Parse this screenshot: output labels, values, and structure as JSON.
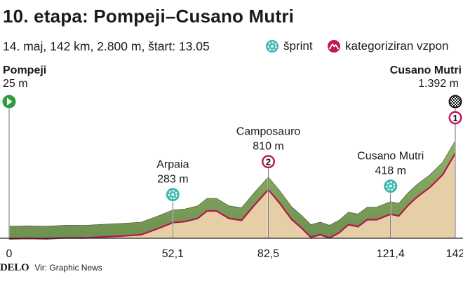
{
  "header": {
    "title": "10. etapa: Pompeji–Cusano Mutri",
    "subtitle": "14. maj, 142 km, 2.800 m, štart: 13.05"
  },
  "legend": {
    "sprint_label": "šprint",
    "climb_label": "kategoriziran vzpon",
    "sprint_icon": "sprint-icon",
    "climb_icon": "mountain-climb-icon"
  },
  "footer": {
    "brand": "DELO",
    "source": "Vir: Graphic News"
  },
  "colors": {
    "profile_fill": "#e6cfa6",
    "ridge": "#7da15a",
    "ridge_dark": "#454a30",
    "line": "#b2164a",
    "sprint": "#3fb8ad",
    "climb": "#c2185b",
    "start": "#2e9e3e"
  },
  "chart_data": {
    "type": "area",
    "xlabel": "",
    "ylabel": "",
    "x_unit": "km",
    "y_unit": "m",
    "xlim": [
      0,
      142
    ],
    "ylim": [
      0,
      1400
    ],
    "x_ticks": [
      "0",
      "52,1",
      "82,5",
      "121,4",
      "142"
    ],
    "x_tick_values": [
      0,
      52.1,
      82.5,
      121.4,
      142
    ],
    "start": {
      "name": "Pompeji",
      "elevation_label": "25 m",
      "km": 0
    },
    "finish": {
      "name": "Cusano Mutri",
      "elevation_label": "1.392 m",
      "km": 142,
      "category": "1"
    },
    "markers": [
      {
        "type": "sprint",
        "name": "Arpaia",
        "elevation_label": "283 m",
        "km": 52.1,
        "elevation": 283
      },
      {
        "type": "climb",
        "name": "Camposauro",
        "elevation_label": "810 m",
        "km": 82.5,
        "elevation": 810,
        "category": "2"
      },
      {
        "type": "sprint",
        "name": "Cusano Mutri",
        "elevation_label": "418 m",
        "km": 121.4,
        "elevation": 418
      }
    ],
    "series": [
      {
        "values": [
          {
            "km": 0,
            "m": 25
          },
          {
            "km": 6,
            "m": 30
          },
          {
            "km": 12,
            "m": 25
          },
          {
            "km": 18,
            "m": 40
          },
          {
            "km": 24,
            "m": 38
          },
          {
            "km": 30,
            "m": 55
          },
          {
            "km": 36,
            "m": 70
          },
          {
            "km": 42,
            "m": 90
          },
          {
            "km": 47,
            "m": 180
          },
          {
            "km": 52.1,
            "m": 283
          },
          {
            "km": 56,
            "m": 300
          },
          {
            "km": 60,
            "m": 350
          },
          {
            "km": 63,
            "m": 470
          },
          {
            "km": 66,
            "m": 470
          },
          {
            "km": 70,
            "m": 350
          },
          {
            "km": 74,
            "m": 320
          },
          {
            "km": 78,
            "m": 560
          },
          {
            "km": 82.5,
            "m": 810
          },
          {
            "km": 86,
            "m": 600
          },
          {
            "km": 90,
            "m": 330
          },
          {
            "km": 93,
            "m": 200
          },
          {
            "km": 96,
            "m": 50
          },
          {
            "km": 99,
            "m": 90
          },
          {
            "km": 102,
            "m": 40
          },
          {
            "km": 105,
            "m": 120
          },
          {
            "km": 108,
            "m": 250
          },
          {
            "km": 111,
            "m": 220
          },
          {
            "km": 114,
            "m": 330
          },
          {
            "km": 117,
            "m": 330
          },
          {
            "km": 121.4,
            "m": 418
          },
          {
            "km": 124,
            "m": 390
          },
          {
            "km": 127,
            "m": 560
          },
          {
            "km": 130,
            "m": 700
          },
          {
            "km": 134,
            "m": 850
          },
          {
            "km": 138,
            "m": 1050
          },
          {
            "km": 142,
            "m": 1392
          }
        ]
      }
    ]
  }
}
